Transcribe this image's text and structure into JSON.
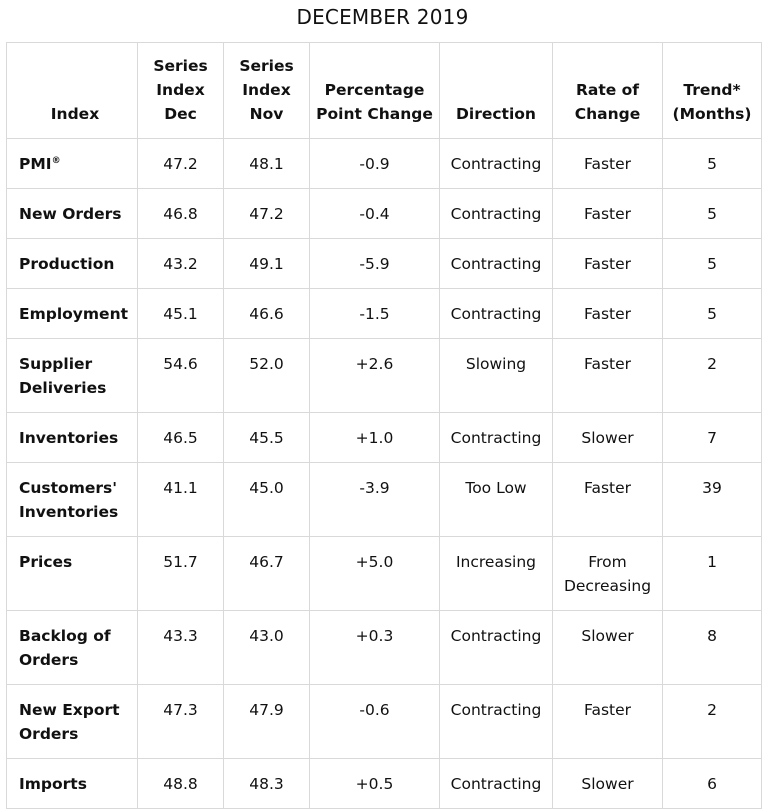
{
  "title": "DECEMBER 2019",
  "headers": {
    "index": "Index",
    "dec": "Series Index Dec",
    "nov": "Series Index Nov",
    "change": "Percentage Point Change",
    "direction": "Direction",
    "rate": "Rate of Change",
    "trend": "Trend* (Months)"
  },
  "rows": [
    {
      "index": "PMI",
      "reg": "®",
      "dec": "47.2",
      "nov": "48.1",
      "change": "-0.9",
      "direction": "Contracting",
      "rate": "Faster",
      "trend": "5"
    },
    {
      "index": "New Orders",
      "dec": "46.8",
      "nov": "47.2",
      "change": "-0.4",
      "direction": "Contracting",
      "rate": "Faster",
      "trend": "5"
    },
    {
      "index": "Production",
      "dec": "43.2",
      "nov": "49.1",
      "change": "-5.9",
      "direction": "Contracting",
      "rate": "Faster",
      "trend": "5"
    },
    {
      "index": "Employment",
      "dec": "45.1",
      "nov": "46.6",
      "change": "-1.5",
      "direction": "Contracting",
      "rate": "Faster",
      "trend": "5"
    },
    {
      "index": "Supplier Deliveries",
      "dec": "54.6",
      "nov": "52.0",
      "change": "+2.6",
      "direction": "Slowing",
      "rate": "Faster",
      "trend": "2"
    },
    {
      "index": "Inventories",
      "dec": "46.5",
      "nov": "45.5",
      "change": "+1.0",
      "direction": "Contracting",
      "rate": "Slower",
      "trend": "7"
    },
    {
      "index": "Customers' Inventories",
      "dec": "41.1",
      "nov": "45.0",
      "change": "-3.9",
      "direction": "Too Low",
      "rate": "Faster",
      "trend": "39"
    },
    {
      "index": "Prices",
      "dec": "51.7",
      "nov": "46.7",
      "change": "+5.0",
      "direction": "Increasing",
      "rate": "From Decreasing",
      "trend": "1"
    },
    {
      "index": "Backlog of Orders",
      "dec": "43.3",
      "nov": "43.0",
      "change": "+0.3",
      "direction": "Contracting",
      "rate": "Slower",
      "trend": "8"
    },
    {
      "index": "New Export Orders",
      "dec": "47.3",
      "nov": "47.9",
      "change": "-0.6",
      "direction": "Contracting",
      "rate": "Faster",
      "trend": "2"
    },
    {
      "index": "Imports",
      "dec": "48.8",
      "nov": "48.3",
      "change": "+0.5",
      "direction": "Contracting",
      "rate": "Slower",
      "trend": "6"
    }
  ]
}
